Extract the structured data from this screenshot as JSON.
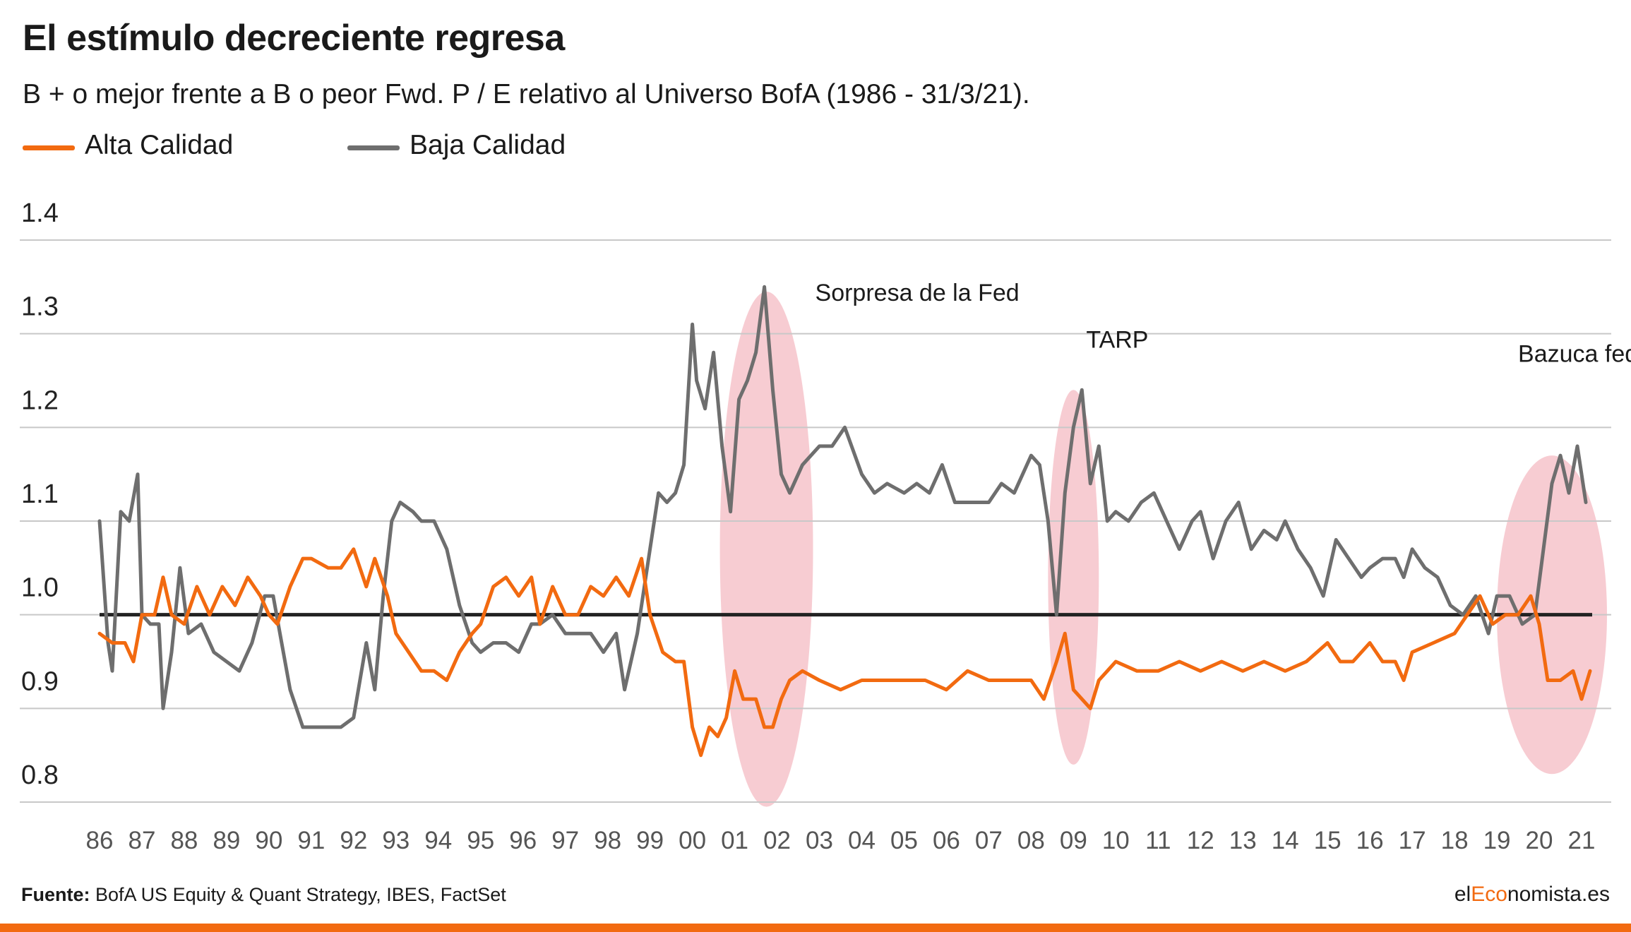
{
  "header": {
    "title": "El estímulo decreciente regresa",
    "subtitle": "B + o mejor frente a B o peor Fwd. P / E relativo al Universo BofA (1986 - 31/3/21)."
  },
  "legend": {
    "items": [
      {
        "label": "Alta Calidad",
        "color": "#f26a10"
      },
      {
        "label": "Baja Calidad",
        "color": "#6e6e6e"
      }
    ]
  },
  "footer": {
    "source_label": "Fuente:",
    "source_text": "BofA US Equity & Quant Strategy, IBES, FactSet",
    "brand_prefix": "el",
    "brand_accent": "Eco",
    "brand_suffix": "nomista.es",
    "accent_color": "#f26a10"
  },
  "chart_data": {
    "type": "line",
    "ylim": [
      0.8,
      1.4
    ],
    "y_ticks": [
      "1.4",
      "1.3",
      "1.2",
      "1.1",
      "1.0",
      "0.9",
      "0.8"
    ],
    "x_range": [
      1986,
      2021.25
    ],
    "x_ticks": [
      "86",
      "87",
      "88",
      "89",
      "90",
      "91",
      "92",
      "93",
      "94",
      "95",
      "96",
      "97",
      "98",
      "99",
      "00",
      "01",
      "02",
      "03",
      "04",
      "05",
      "06",
      "07",
      "08",
      "09",
      "10",
      "11",
      "12",
      "13",
      "14",
      "15",
      "16",
      "17",
      "18",
      "19",
      "20",
      "21"
    ],
    "grid": true,
    "reference_line": 1.0,
    "annotations": [
      {
        "text": "Sorpresa de la Fed",
        "x": 2002.9,
        "y": 1.335
      },
      {
        "text": "TARP",
        "x": 2009.3,
        "y": 1.285
      },
      {
        "text": "Bazuca federal / fiscal",
        "x": 2019.5,
        "y": 1.27
      }
    ],
    "highlights": [
      {
        "cx": 2001.75,
        "cy": 1.07,
        "rx": 1.1,
        "ry": 0.275
      },
      {
        "cx": 2009.0,
        "cy": 1.04,
        "rx": 0.6,
        "ry": 0.2
      },
      {
        "cx": 2020.3,
        "cy": 1.0,
        "rx": 1.3,
        "ry": 0.17
      }
    ],
    "series": [
      {
        "name": "Alta Calidad",
        "color": "#f26a10",
        "points": [
          [
            1986.0,
            0.98
          ],
          [
            1986.3,
            0.97
          ],
          [
            1986.6,
            0.97
          ],
          [
            1986.8,
            0.95
          ],
          [
            1987.0,
            1.0
          ],
          [
            1987.3,
            1.0
          ],
          [
            1987.5,
            1.04
          ],
          [
            1987.7,
            1.0
          ],
          [
            1988.0,
            0.99
          ],
          [
            1988.3,
            1.03
          ],
          [
            1988.6,
            1.0
          ],
          [
            1988.9,
            1.03
          ],
          [
            1989.2,
            1.01
          ],
          [
            1989.5,
            1.04
          ],
          [
            1989.8,
            1.02
          ],
          [
            1990.0,
            1.0
          ],
          [
            1990.2,
            0.99
          ],
          [
            1990.5,
            1.03
          ],
          [
            1990.8,
            1.06
          ],
          [
            1991.0,
            1.06
          ],
          [
            1991.4,
            1.05
          ],
          [
            1991.7,
            1.05
          ],
          [
            1992.0,
            1.07
          ],
          [
            1992.3,
            1.03
          ],
          [
            1992.5,
            1.06
          ],
          [
            1992.8,
            1.02
          ],
          [
            1993.0,
            0.98
          ],
          [
            1993.3,
            0.96
          ],
          [
            1993.6,
            0.94
          ],
          [
            1993.9,
            0.94
          ],
          [
            1994.2,
            0.93
          ],
          [
            1994.5,
            0.96
          ],
          [
            1994.8,
            0.98
          ],
          [
            1995.0,
            0.99
          ],
          [
            1995.3,
            1.03
          ],
          [
            1995.6,
            1.04
          ],
          [
            1995.9,
            1.02
          ],
          [
            1996.2,
            1.04
          ],
          [
            1996.4,
            0.99
          ],
          [
            1996.7,
            1.03
          ],
          [
            1997.0,
            1.0
          ],
          [
            1997.3,
            1.0
          ],
          [
            1997.6,
            1.03
          ],
          [
            1997.9,
            1.02
          ],
          [
            1998.2,
            1.04
          ],
          [
            1998.5,
            1.02
          ],
          [
            1998.8,
            1.06
          ],
          [
            1999.0,
            1.0
          ],
          [
            1999.3,
            0.96
          ],
          [
            1999.6,
            0.95
          ],
          [
            1999.8,
            0.95
          ],
          [
            2000.0,
            0.88
          ],
          [
            2000.2,
            0.85
          ],
          [
            2000.4,
            0.88
          ],
          [
            2000.6,
            0.87
          ],
          [
            2000.8,
            0.89
          ],
          [
            2001.0,
            0.94
          ],
          [
            2001.2,
            0.91
          ],
          [
            2001.5,
            0.91
          ],
          [
            2001.7,
            0.88
          ],
          [
            2001.9,
            0.88
          ],
          [
            2002.1,
            0.91
          ],
          [
            2002.3,
            0.93
          ],
          [
            2002.6,
            0.94
          ],
          [
            2003.0,
            0.93
          ],
          [
            2003.5,
            0.92
          ],
          [
            2004.0,
            0.93
          ],
          [
            2004.5,
            0.93
          ],
          [
            2005.0,
            0.93
          ],
          [
            2005.5,
            0.93
          ],
          [
            2006.0,
            0.92
          ],
          [
            2006.5,
            0.94
          ],
          [
            2007.0,
            0.93
          ],
          [
            2007.5,
            0.93
          ],
          [
            2008.0,
            0.93
          ],
          [
            2008.3,
            0.91
          ],
          [
            2008.6,
            0.95
          ],
          [
            2008.8,
            0.98
          ],
          [
            2009.0,
            0.92
          ],
          [
            2009.2,
            0.91
          ],
          [
            2009.4,
            0.9
          ],
          [
            2009.6,
            0.93
          ],
          [
            2009.8,
            0.94
          ],
          [
            2010.0,
            0.95
          ],
          [
            2010.5,
            0.94
          ],
          [
            2011.0,
            0.94
          ],
          [
            2011.5,
            0.95
          ],
          [
            2012.0,
            0.94
          ],
          [
            2012.5,
            0.95
          ],
          [
            2013.0,
            0.94
          ],
          [
            2013.5,
            0.95
          ],
          [
            2014.0,
            0.94
          ],
          [
            2014.5,
            0.95
          ],
          [
            2015.0,
            0.97
          ],
          [
            2015.3,
            0.95
          ],
          [
            2015.6,
            0.95
          ],
          [
            2016.0,
            0.97
          ],
          [
            2016.3,
            0.95
          ],
          [
            2016.6,
            0.95
          ],
          [
            2016.8,
            0.93
          ],
          [
            2017.0,
            0.96
          ],
          [
            2017.5,
            0.97
          ],
          [
            2018.0,
            0.98
          ],
          [
            2018.3,
            1.0
          ],
          [
            2018.6,
            1.02
          ],
          [
            2018.9,
            0.99
          ],
          [
            2019.2,
            1.0
          ],
          [
            2019.5,
            1.0
          ],
          [
            2019.8,
            1.02
          ],
          [
            2020.0,
            0.99
          ],
          [
            2020.2,
            0.93
          ],
          [
            2020.5,
            0.93
          ],
          [
            2020.8,
            0.94
          ],
          [
            2021.0,
            0.91
          ],
          [
            2021.2,
            0.94
          ]
        ]
      },
      {
        "name": "Baja Calidad",
        "color": "#6e6e6e",
        "points": [
          [
            1986.0,
            1.1
          ],
          [
            1986.2,
            0.97
          ],
          [
            1986.3,
            0.94
          ],
          [
            1986.5,
            1.11
          ],
          [
            1986.7,
            1.1
          ],
          [
            1986.9,
            1.15
          ],
          [
            1987.0,
            1.0
          ],
          [
            1987.2,
            0.99
          ],
          [
            1987.4,
            0.99
          ],
          [
            1987.5,
            0.9
          ],
          [
            1987.7,
            0.96
          ],
          [
            1987.9,
            1.05
          ],
          [
            1988.1,
            0.98
          ],
          [
            1988.4,
            0.99
          ],
          [
            1988.7,
            0.96
          ],
          [
            1989.0,
            0.95
          ],
          [
            1989.3,
            0.94
          ],
          [
            1989.6,
            0.97
          ],
          [
            1989.9,
            1.02
          ],
          [
            1990.1,
            1.02
          ],
          [
            1990.3,
            0.97
          ],
          [
            1990.5,
            0.92
          ],
          [
            1990.8,
            0.88
          ],
          [
            1991.0,
            0.88
          ],
          [
            1991.4,
            0.88
          ],
          [
            1991.7,
            0.88
          ],
          [
            1992.0,
            0.89
          ],
          [
            1992.3,
            0.97
          ],
          [
            1992.5,
            0.92
          ],
          [
            1992.7,
            1.02
          ],
          [
            1992.9,
            1.1
          ],
          [
            1993.1,
            1.12
          ],
          [
            1993.4,
            1.11
          ],
          [
            1993.6,
            1.1
          ],
          [
            1993.9,
            1.1
          ],
          [
            1994.2,
            1.07
          ],
          [
            1994.5,
            1.01
          ],
          [
            1994.8,
            0.97
          ],
          [
            1995.0,
            0.96
          ],
          [
            1995.3,
            0.97
          ],
          [
            1995.6,
            0.97
          ],
          [
            1995.9,
            0.96
          ],
          [
            1996.2,
            0.99
          ],
          [
            1996.4,
            0.99
          ],
          [
            1996.7,
            1.0
          ],
          [
            1997.0,
            0.98
          ],
          [
            1997.3,
            0.98
          ],
          [
            1997.6,
            0.98
          ],
          [
            1997.9,
            0.96
          ],
          [
            1998.2,
            0.98
          ],
          [
            1998.4,
            0.92
          ],
          [
            1998.7,
            0.98
          ],
          [
            1999.0,
            1.07
          ],
          [
            1999.2,
            1.13
          ],
          [
            1999.4,
            1.12
          ],
          [
            1999.6,
            1.13
          ],
          [
            1999.8,
            1.16
          ],
          [
            2000.0,
            1.31
          ],
          [
            2000.1,
            1.25
          ],
          [
            2000.3,
            1.22
          ],
          [
            2000.5,
            1.28
          ],
          [
            2000.7,
            1.18
          ],
          [
            2000.9,
            1.11
          ],
          [
            2001.1,
            1.23
          ],
          [
            2001.3,
            1.25
          ],
          [
            2001.5,
            1.28
          ],
          [
            2001.7,
            1.35
          ],
          [
            2001.9,
            1.24
          ],
          [
            2002.1,
            1.15
          ],
          [
            2002.3,
            1.13
          ],
          [
            2002.6,
            1.16
          ],
          [
            2003.0,
            1.18
          ],
          [
            2003.3,
            1.18
          ],
          [
            2003.6,
            1.2
          ],
          [
            2004.0,
            1.15
          ],
          [
            2004.3,
            1.13
          ],
          [
            2004.6,
            1.14
          ],
          [
            2005.0,
            1.13
          ],
          [
            2005.3,
            1.14
          ],
          [
            2005.6,
            1.13
          ],
          [
            2005.9,
            1.16
          ],
          [
            2006.2,
            1.12
          ],
          [
            2006.5,
            1.12
          ],
          [
            2006.8,
            1.12
          ],
          [
            2007.0,
            1.12
          ],
          [
            2007.3,
            1.14
          ],
          [
            2007.6,
            1.13
          ],
          [
            2008.0,
            1.17
          ],
          [
            2008.2,
            1.16
          ],
          [
            2008.4,
            1.1
          ],
          [
            2008.6,
            1.0
          ],
          [
            2008.8,
            1.13
          ],
          [
            2009.0,
            1.2
          ],
          [
            2009.2,
            1.24
          ],
          [
            2009.4,
            1.14
          ],
          [
            2009.6,
            1.18
          ],
          [
            2009.8,
            1.1
          ],
          [
            2010.0,
            1.11
          ],
          [
            2010.3,
            1.1
          ],
          [
            2010.6,
            1.12
          ],
          [
            2010.9,
            1.13
          ],
          [
            2011.2,
            1.1
          ],
          [
            2011.5,
            1.07
          ],
          [
            2011.8,
            1.1
          ],
          [
            2012.0,
            1.11
          ],
          [
            2012.3,
            1.06
          ],
          [
            2012.6,
            1.1
          ],
          [
            2012.9,
            1.12
          ],
          [
            2013.2,
            1.07
          ],
          [
            2013.5,
            1.09
          ],
          [
            2013.8,
            1.08
          ],
          [
            2014.0,
            1.1
          ],
          [
            2014.3,
            1.07
          ],
          [
            2014.6,
            1.05
          ],
          [
            2014.9,
            1.02
          ],
          [
            2015.2,
            1.08
          ],
          [
            2015.5,
            1.06
          ],
          [
            2015.8,
            1.04
          ],
          [
            2016.0,
            1.05
          ],
          [
            2016.3,
            1.06
          ],
          [
            2016.6,
            1.06
          ],
          [
            2016.8,
            1.04
          ],
          [
            2017.0,
            1.07
          ],
          [
            2017.3,
            1.05
          ],
          [
            2017.6,
            1.04
          ],
          [
            2017.9,
            1.01
          ],
          [
            2018.2,
            1.0
          ],
          [
            2018.5,
            1.02
          ],
          [
            2018.8,
            0.98
          ],
          [
            2019.0,
            1.02
          ],
          [
            2019.3,
            1.02
          ],
          [
            2019.6,
            0.99
          ],
          [
            2019.9,
            1.0
          ],
          [
            2020.1,
            1.07
          ],
          [
            2020.3,
            1.14
          ],
          [
            2020.5,
            1.17
          ],
          [
            2020.7,
            1.13
          ],
          [
            2020.9,
            1.18
          ],
          [
            2021.1,
            1.12
          ]
        ]
      }
    ]
  }
}
